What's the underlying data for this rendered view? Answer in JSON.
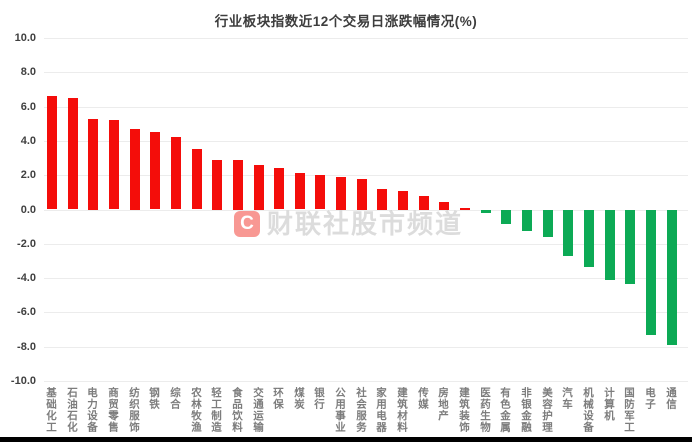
{
  "chart_data": {
    "type": "bar",
    "title": "行业板块指数近12个交易日涨跌幅情况(%)",
    "categories": [
      "基础化工",
      "石油石化",
      "电力设备",
      "商贸零售",
      "纺织服饰",
      "钢铁",
      "综合",
      "农林牧渔",
      "轻工制造",
      "食品饮料",
      "交通运输",
      "环保",
      "煤炭",
      "银行",
      "公用事业",
      "社会服务",
      "家用电器",
      "建筑材料",
      "传媒",
      "房地产",
      "建筑装饰",
      "医药生物",
      "有色金属",
      "非银金融",
      "美容护理",
      "汽车",
      "机械设备",
      "计算机",
      "国防军工",
      "电子",
      "通信"
    ],
    "values": [
      6.6,
      6.5,
      5.3,
      5.2,
      4.7,
      4.5,
      4.2,
      3.5,
      2.9,
      2.9,
      2.6,
      2.4,
      2.1,
      2.0,
      1.9,
      1.8,
      1.2,
      1.1,
      0.8,
      0.45,
      0.1,
      -0.2,
      -0.8,
      -1.2,
      -1.6,
      -2.7,
      -3.3,
      -4.1,
      -4.3,
      -7.3,
      -7.9
    ],
    "xlabel": "",
    "ylabel": "",
    "ylim": [
      -10,
      10
    ],
    "ytick_labels": [
      "10.0",
      "8.0",
      "6.0",
      "4.0",
      "2.0",
      "0.0",
      "-2.0",
      "-4.0",
      "-6.0",
      "-8.0",
      "-10.0"
    ],
    "grid": true,
    "legend": false,
    "colors": {
      "positive_bar": "#f40d0a",
      "negative_bar": "#0caa55",
      "gridline": "#ececec",
      "title_text": "#3d3d3d",
      "axis_text": "#404040",
      "category_text": "#7d7d7d"
    }
  },
  "watermark": {
    "badge_letter": "C",
    "text": "财联社股市频道",
    "badge_color": "rgba(242,68,58,0.55)",
    "text_color": "rgba(185,185,185,0.5)"
  }
}
